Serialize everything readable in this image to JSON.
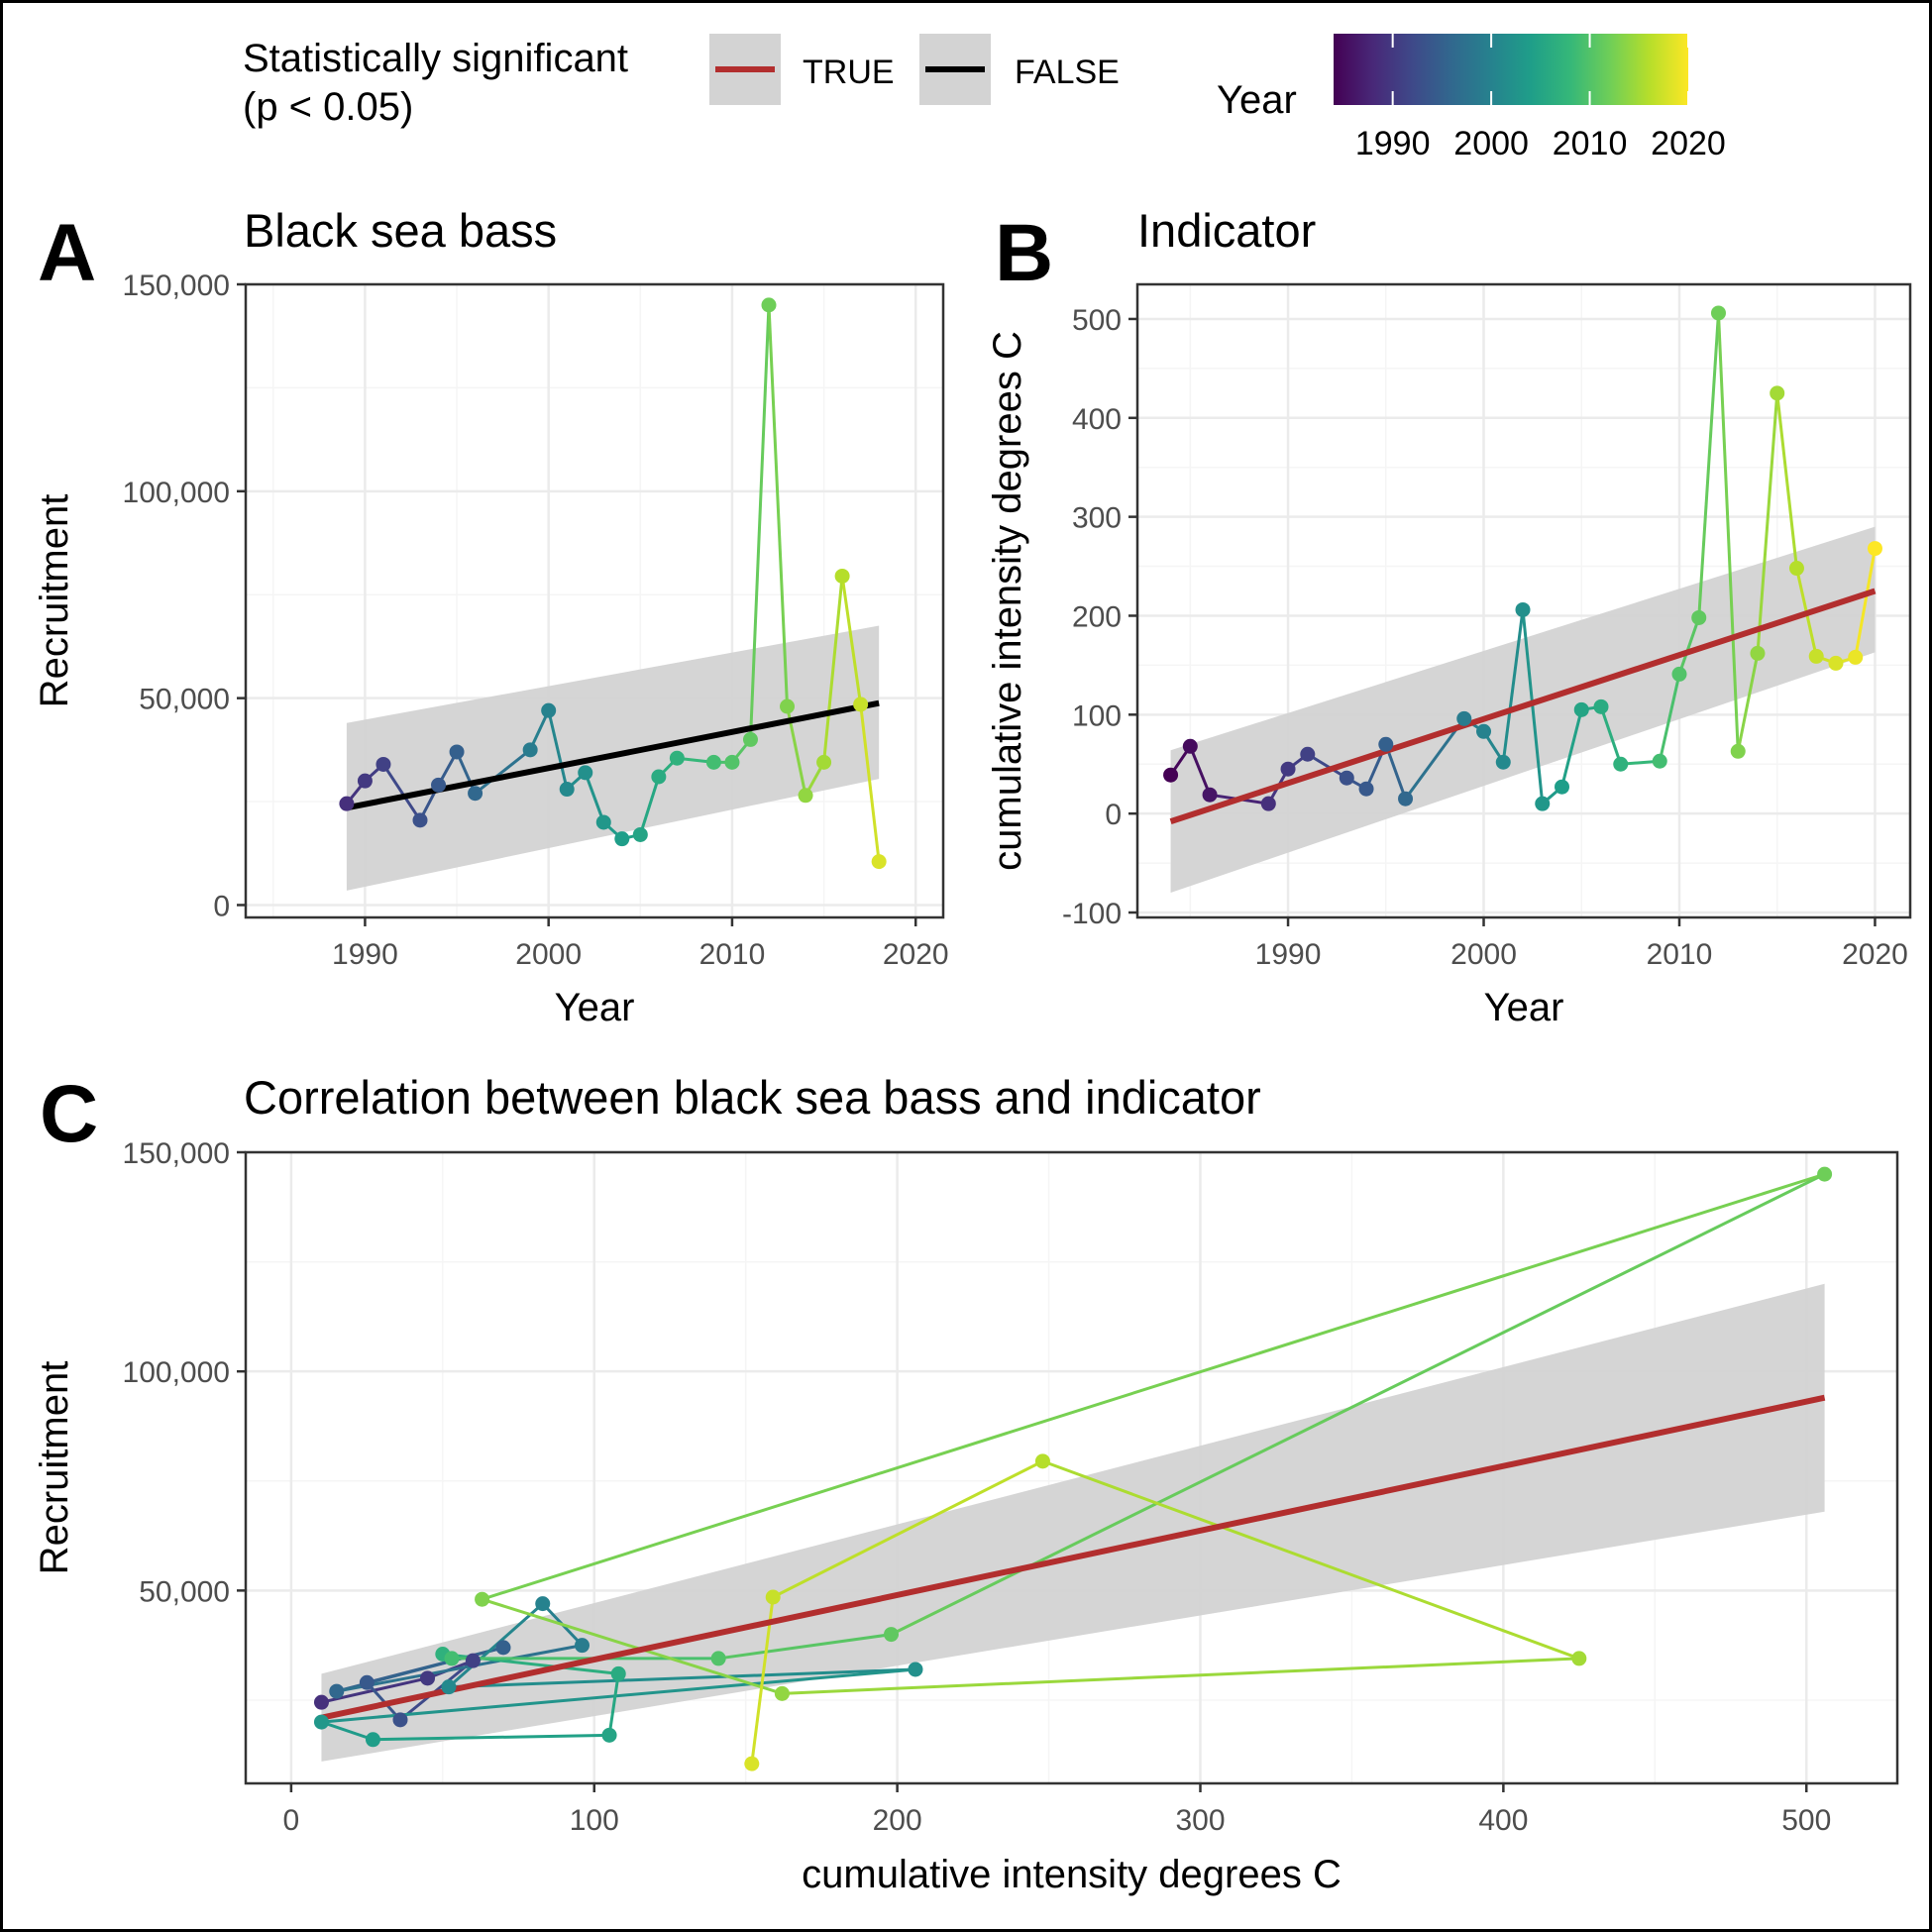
{
  "legend": {
    "significance_title_line1": "Statistically significant",
    "significance_title_line2": "(p < 0.05)",
    "items": [
      {
        "label": "TRUE",
        "color": "#b22e2e"
      },
      {
        "label": "FALSE",
        "color": "#000000"
      }
    ],
    "colorbar_title": "Year",
    "colorbar_ticks": [
      "1990",
      "2000",
      "2010",
      "2020"
    ],
    "colorbar_range": [
      1984,
      2020
    ]
  },
  "colors": {
    "viridis": [
      "#440154",
      "#482878",
      "#3e4989",
      "#31688e",
      "#26828e",
      "#1f9e89",
      "#35b779",
      "#6ece58",
      "#b5de2b",
      "#fde725"
    ],
    "band": "#d3d3d3",
    "grid_major": "#ebebeb",
    "grid_minor": "#f5f5f5"
  },
  "chart_data": [
    {
      "tag": "A",
      "type": "line",
      "title": "Black sea bass",
      "xlabel": "Year",
      "ylabel": "Recruitment",
      "xlim": [
        1983.5,
        2021.5
      ],
      "ylim": [
        -3000,
        150000
      ],
      "xticks": [
        1990,
        2000,
        2010,
        2020
      ],
      "xtick_labels": [
        "1990",
        "2000",
        "2010",
        "2020"
      ],
      "yticks": [
        0,
        50000,
        100000,
        150000
      ],
      "ytick_labels": [
        "0",
        "50,000",
        "100,000",
        "150,000"
      ],
      "grid": true,
      "x": [
        1989,
        1990,
        1991,
        1993,
        1994,
        1995,
        1996,
        1999,
        2000,
        2001,
        2002,
        2003,
        2004,
        2005,
        2006,
        2007,
        2009,
        2010,
        2011,
        2012,
        2013,
        2014,
        2015,
        2016,
        2017,
        2018
      ],
      "y": [
        24500,
        30000,
        34000,
        20500,
        29000,
        37000,
        27000,
        37500,
        47000,
        28000,
        32000,
        20000,
        16000,
        17000,
        31000,
        35500,
        34500,
        34500,
        40000,
        145000,
        48000,
        26500,
        34500,
        79500,
        48500,
        10500
      ],
      "fit": {
        "significant": false,
        "x": [
          1989,
          2018
        ],
        "y": [
          23500,
          48800
        ],
        "band_lower": [
          3500,
          30500
        ],
        "band_upper": [
          44000,
          67500
        ]
      }
    },
    {
      "tag": "B",
      "type": "line",
      "title": "Indicator",
      "xlabel": "Year",
      "ylabel": "cumulative intensity degrees C",
      "xlim": [
        1982.3,
        2021.8
      ],
      "ylim": [
        -105,
        535
      ],
      "xticks": [
        1990,
        2000,
        2010,
        2020
      ],
      "xtick_labels": [
        "1990",
        "2000",
        "2010",
        "2020"
      ],
      "yticks": [
        -100,
        0,
        100,
        200,
        300,
        400,
        500
      ],
      "ytick_labels": [
        "-100",
        "0",
        "100",
        "200",
        "300",
        "400",
        "500"
      ],
      "grid": true,
      "x": [
        1984,
        1985,
        1986,
        1989,
        1990,
        1991,
        1993,
        1994,
        1995,
        1996,
        1999,
        2000,
        2001,
        2002,
        2003,
        2004,
        2005,
        2006,
        2007,
        2009,
        2010,
        2011,
        2012,
        2013,
        2014,
        2015,
        2016,
        2017,
        2018,
        2019,
        2020
      ],
      "y": [
        39,
        68,
        19,
        10,
        45,
        60,
        36,
        25,
        70,
        15,
        96,
        83,
        52,
        206,
        10,
        27,
        105,
        108,
        50,
        53,
        141,
        198,
        506,
        63,
        162,
        425,
        248,
        159,
        152,
        158,
        268
      ],
      "fit": {
        "significant": true,
        "x": [
          1984,
          2020
        ],
        "y": [
          -8,
          225
        ],
        "band_lower": [
          -80,
          163
        ],
        "band_upper": [
          64,
          290
        ]
      }
    },
    {
      "tag": "C",
      "type": "scatter",
      "title": "Correlation between black sea bass and indicator",
      "xlabel": "cumulative intensity degrees C",
      "ylabel": "Recruitment",
      "xlim": [
        -15,
        530
      ],
      "ylim": [
        6000,
        150000
      ],
      "xticks": [
        0,
        100,
        200,
        300,
        400,
        500
      ],
      "xtick_labels": [
        "0",
        "100",
        "200",
        "300",
        "400",
        "500"
      ],
      "yticks": [
        50000,
        100000,
        150000
      ],
      "ytick_labels": [
        "50,000",
        "100,000",
        "150,000"
      ],
      "grid": true,
      "year": [
        1989,
        1990,
        1991,
        1993,
        1994,
        1995,
        1996,
        1999,
        2000,
        2001,
        2002,
        2003,
        2004,
        2005,
        2006,
        2007,
        2009,
        2010,
        2011,
        2012,
        2013,
        2014,
        2015,
        2016,
        2017,
        2018
      ],
      "x": [
        10,
        45,
        60,
        36,
        25,
        70,
        15,
        96,
        83,
        52,
        206,
        10,
        27,
        105,
        108,
        50,
        53,
        141,
        198,
        506,
        63,
        162,
        425,
        248,
        159,
        152
      ],
      "y": [
        24500,
        30000,
        34000,
        20500,
        29000,
        37000,
        27000,
        37500,
        47000,
        28000,
        32000,
        20000,
        16000,
        17000,
        31000,
        35500,
        34500,
        34500,
        40000,
        145000,
        48000,
        26500,
        34500,
        79500,
        48500,
        10500
      ],
      "fit": {
        "significant": true,
        "x": [
          10,
          506
        ],
        "y": [
          21000,
          94000
        ],
        "band_lower": [
          11000,
          68000
        ],
        "band_upper": [
          31000,
          120000
        ]
      }
    }
  ]
}
